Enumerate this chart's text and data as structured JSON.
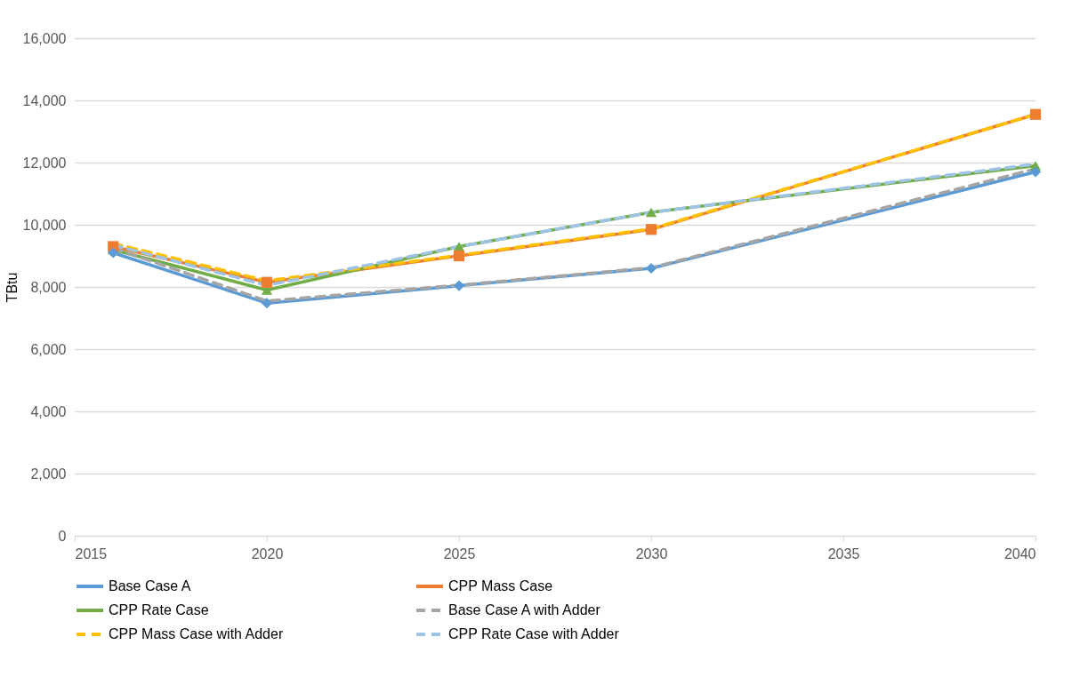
{
  "chart_data": {
    "type": "line",
    "ylabel": "TBtu",
    "x": [
      2016,
      2020,
      2025,
      2030,
      2040
    ],
    "xlim": [
      2015,
      2040
    ],
    "xticks": [
      2015,
      2020,
      2025,
      2030,
      2035,
      2040
    ],
    "ylim": [
      0,
      16000
    ],
    "yticks": [
      0,
      {
        "value": 2000,
        "label": "2,000"
      },
      {
        "value": 4000,
        "label": "4,000"
      },
      {
        "value": 6000,
        "label": "6,000"
      },
      {
        "value": 8000,
        "label": "8,000"
      },
      {
        "value": 10000,
        "label": "10,000"
      },
      {
        "value": 12000,
        "label": "12,000"
      },
      {
        "value": 14000,
        "label": "14,000"
      },
      {
        "value": 16000,
        "label": "16,000"
      }
    ],
    "grid": "y",
    "legend": "bottom",
    "series": [
      {
        "name": "Base Case A",
        "color": "#5b9bd5",
        "line_style": "solid",
        "marker": "diamond",
        "values": [
          9100,
          7480,
          8040,
          8600,
          11700
        ]
      },
      {
        "name": "CPP Mass Case",
        "color": "#ed7d31",
        "line_style": "solid",
        "marker": "square",
        "values": [
          9300,
          8150,
          9000,
          9850,
          13550
        ]
      },
      {
        "name": "CPP Rate Case",
        "color": "#70ad47",
        "line_style": "solid",
        "marker": "triangle",
        "values": [
          9200,
          7900,
          9300,
          10400,
          11900
        ]
      },
      {
        "name": "Base Case A with Adder",
        "color": "#a5a5a5",
        "line_style": "dashed",
        "marker": "none",
        "values": [
          9250,
          7550,
          8060,
          8620,
          11800
        ]
      },
      {
        "name": "CPP Mass Case with Adder",
        "color": "#ffc000",
        "line_style": "dashed",
        "marker": "none",
        "values": [
          9400,
          8200,
          9020,
          9870,
          13550
        ]
      },
      {
        "name": "CPP Rate Case with Adder",
        "color": "#9dc3e6",
        "line_style": "dashed",
        "marker": "none",
        "values": [
          9350,
          8050,
          9300,
          10400,
          11950
        ]
      }
    ]
  }
}
